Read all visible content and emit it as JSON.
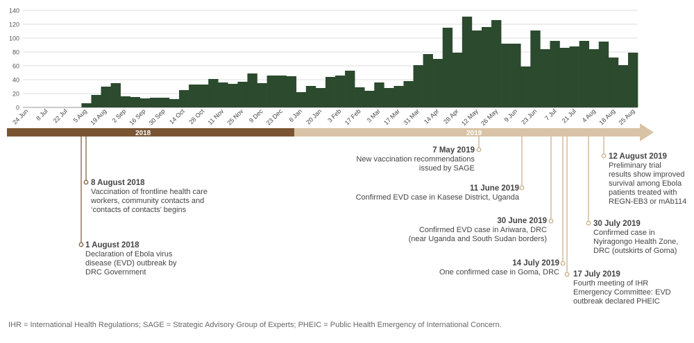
{
  "colors": {
    "bar": "#2b4a2e",
    "year2018": "#7a5533",
    "year2019": "#d9c3a6",
    "line2018": "#7a5533",
    "line2019": "#c8a882",
    "grid": "#dddddd"
  },
  "chart_data": {
    "type": "bar",
    "title": "",
    "xlabel": "",
    "ylabel": "",
    "ylim": [
      0,
      140
    ],
    "y_ticks": [
      0,
      20,
      40,
      60,
      80,
      100,
      120,
      140
    ],
    "grid": true,
    "x_tick_labels": [
      "24 Jun",
      "8 Jul",
      "22 Jul",
      "5 Aug",
      "19 Aug",
      "2 Sep",
      "16 Sep",
      "30 Sep",
      "14 Oct",
      "28 Oct",
      "11 Nov",
      "25 Nov",
      "9 Dec",
      "23 Dec",
      "6 Jan",
      "20 Jan",
      "3 Feb",
      "17 Feb",
      "3 Mar",
      "17 Mar",
      "31 Mar",
      "14 Apr",
      "28 Apr",
      "12 May",
      "26 May",
      "9 Jun",
      "23 Jun",
      "7 Jul",
      "21 Jul",
      "4 Aug",
      "18 Aug",
      "25 Aug"
    ],
    "values": [
      0,
      0,
      0,
      0,
      0,
      0,
      6,
      18,
      30,
      35,
      16,
      15,
      13,
      14,
      14,
      12,
      25,
      33,
      33,
      41,
      36,
      34,
      37,
      49,
      35,
      46,
      46,
      45,
      22,
      31,
      28,
      44,
      46,
      53,
      29,
      24,
      36,
      28,
      31,
      38,
      61,
      77,
      70,
      115,
      79,
      131,
      111,
      116,
      126,
      92,
      92,
      59,
      111,
      84,
      96,
      86,
      88,
      96,
      84,
      95,
      72,
      61,
      79
    ]
  },
  "timeline": {
    "year_2018": "2018",
    "year_2019": "2019"
  },
  "events": [
    {
      "date": "1 August 2018",
      "text": "Declaration of Ebola virus\ndisease (EVD) outbreak by\nDRC Government"
    },
    {
      "date": "8 August 2018",
      "text": "Vaccination of frontline health care\nworkers, community contacts and\n‘contacts of contacts’ begins"
    },
    {
      "date": "7 May 2019",
      "text": "New vaccination recommendations\nissued by SAGE"
    },
    {
      "date": "11 June 2019",
      "text": "Confirmed EVD case in Kasese District, Uganda"
    },
    {
      "date": "30 June 2019",
      "text": "Confirmed EVD case in Ariwara, DRC\n(near Uganda and South Sudan borders)"
    },
    {
      "date": "14 July 2019",
      "text": "One confirmed case in Goma, DRC"
    },
    {
      "date": "17 July 2019",
      "text": "Fourth meeting of IHR\nEmergency Committee: EVD\noutbreak declared PHEIC"
    },
    {
      "date": "30 July 2019",
      "text": "Confirmed case in\nNyiragongo Health Zone,\nDRC (outskirts of Goma)"
    },
    {
      "date": "12 August 2019",
      "text": "Preliminary trial\nresults show improved\nsurvival among Ebola\npatients treated with\nREGN-EB3 or mAb114"
    }
  ],
  "footnote": "IHR = International Health Regulations; SAGE = Strategic Advisory Group of Experts; PHEIC = Public Health Emergency of International Concern."
}
